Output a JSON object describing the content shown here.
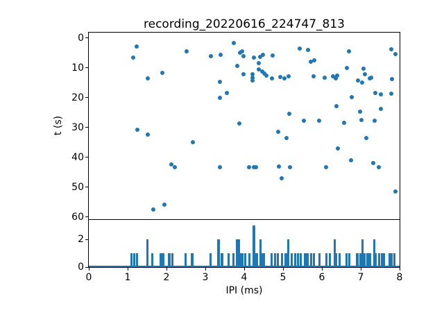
{
  "colors": {
    "accent": "#1f77b4",
    "axis": "#000000",
    "background": "#ffffff",
    "text": "#000000"
  },
  "chart_data": [
    {
      "type": "scatter",
      "title": "recording_20220616_224747_813",
      "xlabel": "IPI (ms)",
      "ylabel": "t (s)",
      "xlim": [
        0,
        8
      ],
      "ylim": [
        -1.86,
        60.74
      ],
      "y_inverted": true,
      "xticks": [
        0,
        1,
        2,
        3,
        4,
        5,
        6,
        7,
        8
      ],
      "yticks": [
        0,
        10,
        20,
        30,
        40,
        50,
        60
      ],
      "grid": false,
      "legend": null,
      "marker_color": "#1f77b4",
      "points": [
        [
          1.14,
          6.6
        ],
        [
          1.23,
          2.8
        ],
        [
          1.52,
          13.6
        ],
        [
          1.89,
          11.6
        ],
        [
          2.52,
          4.5
        ],
        [
          3.15,
          6.0
        ],
        [
          3.4,
          5.7
        ],
        [
          3.38,
          14.6
        ],
        [
          3.38,
          19.9
        ],
        [
          3.56,
          18.5
        ],
        [
          1.25,
          30.7
        ],
        [
          1.51,
          32.3
        ],
        [
          2.67,
          35.0
        ],
        [
          2.12,
          42.3
        ],
        [
          2.21,
          43.4
        ],
        [
          3.38,
          43.4
        ],
        [
          1.66,
          57.5
        ],
        [
          1.95,
          55.8
        ],
        [
          3.73,
          1.7
        ],
        [
          3.89,
          4.9
        ],
        [
          3.95,
          4.4
        ],
        [
          3.99,
          6.1
        ],
        [
          3.83,
          9.2
        ],
        [
          3.98,
          12.2
        ],
        [
          3.87,
          28.6
        ],
        [
          4.25,
          6.6
        ],
        [
          4.41,
          6.2
        ],
        [
          4.48,
          5.7
        ],
        [
          4.37,
          8.3
        ],
        [
          4.73,
          5.8
        ],
        [
          4.38,
          10.5
        ],
        [
          4.46,
          11.2
        ],
        [
          4.51,
          11.9
        ],
        [
          4.57,
          12.6
        ],
        [
          4.22,
          12.0
        ],
        [
          4.22,
          13.2
        ],
        [
          4.22,
          14.3
        ],
        [
          4.71,
          13.6
        ],
        [
          4.92,
          13.0
        ],
        [
          5.04,
          13.5
        ],
        [
          5.15,
          12.9
        ],
        [
          5.16,
          25.3
        ],
        [
          4.88,
          31.5
        ],
        [
          5.09,
          33.5
        ],
        [
          4.13,
          43.3
        ],
        [
          4.25,
          43.3
        ],
        [
          4.31,
          43.3
        ],
        [
          4.89,
          43.1
        ],
        [
          5.18,
          43.3
        ],
        [
          4.96,
          46.9
        ],
        [
          5.43,
          3.6
        ],
        [
          5.65,
          3.9
        ],
        [
          5.72,
          7.9
        ],
        [
          5.8,
          7.5
        ],
        [
          5.78,
          12.7
        ],
        [
          6.08,
          13.2
        ],
        [
          6.28,
          12.9
        ],
        [
          6.35,
          13.4
        ],
        [
          6.4,
          12.6
        ],
        [
          5.53,
          27.7
        ],
        [
          5.92,
          27.7
        ],
        [
          6.37,
          22.7
        ],
        [
          6.41,
          37.0
        ],
        [
          6.11,
          43.4
        ],
        [
          6.58,
          28.4
        ],
        [
          6.64,
          9.9
        ],
        [
          6.7,
          4.4
        ],
        [
          6.76,
          19.8
        ],
        [
          6.93,
          14.1
        ],
        [
          7.03,
          15.0
        ],
        [
          7.08,
          10.2
        ],
        [
          7.1,
          12.2
        ],
        [
          7.23,
          13.4
        ],
        [
          7.27,
          13.2
        ],
        [
          7.8,
          13.7
        ],
        [
          7.37,
          18.4
        ],
        [
          7.52,
          18.8
        ],
        [
          7.79,
          18.7
        ],
        [
          7.52,
          23.8
        ],
        [
          7.35,
          27.6
        ],
        [
          6.99,
          24.7
        ],
        [
          7.02,
          27.4
        ],
        [
          7.78,
          3.8
        ],
        [
          7.9,
          5.3
        ],
        [
          7.15,
          33.6
        ],
        [
          7.33,
          41.8
        ],
        [
          7.47,
          43.4
        ],
        [
          6.75,
          40.9
        ],
        [
          7.89,
          51.4
        ]
      ]
    },
    {
      "type": "bar",
      "title": "",
      "xlabel": "IPI (ms)",
      "ylabel": "",
      "xlim": [
        0,
        8
      ],
      "ylim": [
        0,
        3.425
      ],
      "xticks": [
        0,
        1,
        2,
        3,
        4,
        5,
        6,
        7,
        8
      ],
      "yticks": [
        0,
        2
      ],
      "grid": false,
      "bar_color": "#1f77b4",
      "bar_width_ms": 0.04,
      "bars": [
        [
          1.1,
          1
        ],
        [
          1.17,
          1
        ],
        [
          1.24,
          1
        ],
        [
          1.51,
          2
        ],
        [
          1.64,
          1
        ],
        [
          1.85,
          1
        ],
        [
          1.91,
          1
        ],
        [
          2.07,
          1
        ],
        [
          2.15,
          1
        ],
        [
          2.49,
          1
        ],
        [
          2.66,
          1
        ],
        [
          3.13,
          1
        ],
        [
          3.34,
          2
        ],
        [
          3.43,
          1
        ],
        [
          3.6,
          1
        ],
        [
          3.73,
          1
        ],
        [
          3.81,
          2
        ],
        [
          3.86,
          2
        ],
        [
          3.9,
          1
        ],
        [
          3.96,
          1
        ],
        [
          4.02,
          1
        ],
        [
          4.14,
          1
        ],
        [
          4.25,
          3
        ],
        [
          4.32,
          1
        ],
        [
          4.42,
          2
        ],
        [
          4.46,
          1
        ],
        [
          4.51,
          1
        ],
        [
          4.71,
          1
        ],
        [
          4.8,
          1
        ],
        [
          4.86,
          1
        ],
        [
          4.98,
          1
        ],
        [
          5.07,
          1
        ],
        [
          5.14,
          2
        ],
        [
          5.23,
          1
        ],
        [
          5.31,
          1
        ],
        [
          5.39,
          1
        ],
        [
          5.46,
          1
        ],
        [
          5.57,
          1
        ],
        [
          5.64,
          1
        ],
        [
          5.73,
          1
        ],
        [
          5.8,
          1
        ],
        [
          5.94,
          1
        ],
        [
          6.12,
          1
        ],
        [
          6.21,
          1
        ],
        [
          6.33,
          2
        ],
        [
          6.37,
          1
        ],
        [
          6.45,
          1
        ],
        [
          6.63,
          1
        ],
        [
          6.71,
          1
        ],
        [
          6.91,
          1
        ],
        [
          7.0,
          1
        ],
        [
          7.05,
          2
        ],
        [
          7.09,
          1
        ],
        [
          7.18,
          1
        ],
        [
          7.24,
          1
        ],
        [
          7.35,
          2
        ],
        [
          7.39,
          1
        ],
        [
          7.48,
          1
        ],
        [
          7.54,
          1
        ],
        [
          7.6,
          1
        ],
        [
          7.74,
          1
        ],
        [
          7.8,
          1
        ],
        [
          7.86,
          1
        ]
      ]
    }
  ]
}
